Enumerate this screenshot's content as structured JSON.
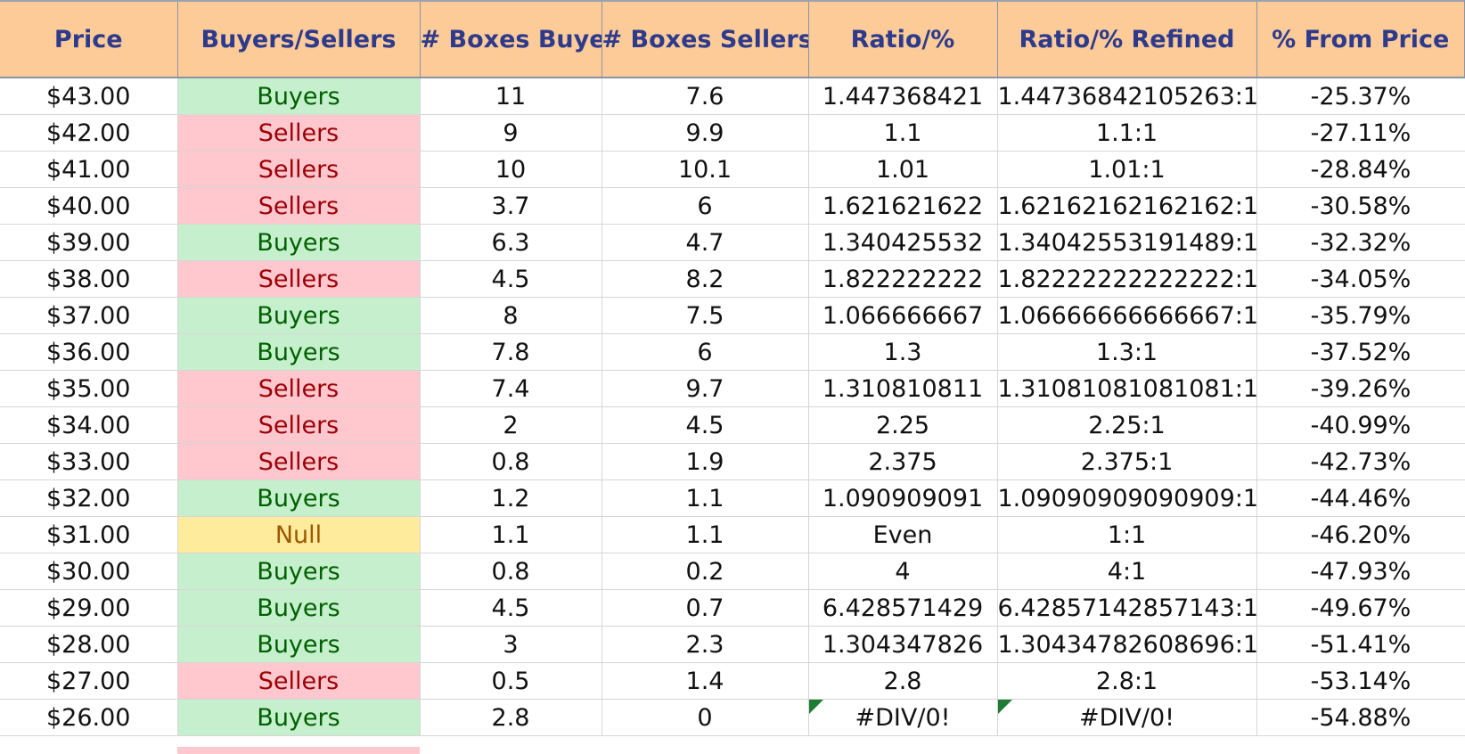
{
  "headers": [
    "Price",
    "Buyers/Sellers",
    "# Boxes Buyers",
    "# Boxes Sellers",
    "Ratio/%",
    "Ratio/% Refined",
    "% From Price"
  ],
  "rows": [
    {
      "price": "$43.00",
      "bs": "Buyers",
      "bb": "11",
      "bsell": "7.6",
      "ratio": "1.447368421",
      "refined": "1.44736842105263:1",
      "from": "-25.37%"
    },
    {
      "price": "$42.00",
      "bs": "Sellers",
      "bb": "9",
      "bsell": "9.9",
      "ratio": "1.1",
      "refined": "1.1:1",
      "from": "-27.11%"
    },
    {
      "price": "$41.00",
      "bs": "Sellers",
      "bb": "10",
      "bsell": "10.1",
      "ratio": "1.01",
      "refined": "1.01:1",
      "from": "-28.84%"
    },
    {
      "price": "$40.00",
      "bs": "Sellers",
      "bb": "3.7",
      "bsell": "6",
      "ratio": "1.621621622",
      "refined": "1.62162162162162:1",
      "from": "-30.58%"
    },
    {
      "price": "$39.00",
      "bs": "Buyers",
      "bb": "6.3",
      "bsell": "4.7",
      "ratio": "1.340425532",
      "refined": "1.34042553191489:1",
      "from": "-32.32%"
    },
    {
      "price": "$38.00",
      "bs": "Sellers",
      "bb": "4.5",
      "bsell": "8.2",
      "ratio": "1.822222222",
      "refined": "1.82222222222222:1",
      "from": "-34.05%"
    },
    {
      "price": "$37.00",
      "bs": "Buyers",
      "bb": "8",
      "bsell": "7.5",
      "ratio": "1.066666667",
      "refined": "1.06666666666667:1",
      "from": "-35.79%"
    },
    {
      "price": "$36.00",
      "bs": "Buyers",
      "bb": "7.8",
      "bsell": "6",
      "ratio": "1.3",
      "refined": "1.3:1",
      "from": "-37.52%"
    },
    {
      "price": "$35.00",
      "bs": "Sellers",
      "bb": "7.4",
      "bsell": "9.7",
      "ratio": "1.310810811",
      "refined": "1.31081081081081:1",
      "from": "-39.26%"
    },
    {
      "price": "$34.00",
      "bs": "Sellers",
      "bb": "2",
      "bsell": "4.5",
      "ratio": "2.25",
      "refined": "2.25:1",
      "from": "-40.99%"
    },
    {
      "price": "$33.00",
      "bs": "Sellers",
      "bb": "0.8",
      "bsell": "1.9",
      "ratio": "2.375",
      "refined": "2.375:1",
      "from": "-42.73%"
    },
    {
      "price": "$32.00",
      "bs": "Buyers",
      "bb": "1.2",
      "bsell": "1.1",
      "ratio": "1.090909091",
      "refined": "1.09090909090909:1",
      "from": "-44.46%"
    },
    {
      "price": "$31.00",
      "bs": "Null",
      "bb": "1.1",
      "bsell": "1.1",
      "ratio": "Even",
      "refined": "1:1",
      "from": "-46.20%"
    },
    {
      "price": "$30.00",
      "bs": "Buyers",
      "bb": "0.8",
      "bsell": "0.2",
      "ratio": "4",
      "refined": "4:1",
      "from": "-47.93%"
    },
    {
      "price": "$29.00",
      "bs": "Buyers",
      "bb": "4.5",
      "bsell": "0.7",
      "ratio": "6.428571429",
      "refined": "6.42857142857143:1",
      "from": "-49.67%"
    },
    {
      "price": "$28.00",
      "bs": "Buyers",
      "bb": "3",
      "bsell": "2.3",
      "ratio": "1.304347826",
      "refined": "1.30434782608696:1",
      "from": "-51.41%"
    },
    {
      "price": "$27.00",
      "bs": "Sellers",
      "bb": "0.5",
      "bsell": "1.4",
      "ratio": "2.8",
      "refined": "2.8:1",
      "from": "-53.14%"
    },
    {
      "price": "$26.00",
      "bs": "Buyers",
      "bb": "2.8",
      "bsell": "0",
      "ratio": "#DIV/0!",
      "refined": "#DIV/0!",
      "from": "-54.88%",
      "error_flag": true
    }
  ],
  "colors": {
    "header_bg": "#fccb98",
    "header_text": "#2e3a8c",
    "buyers_bg": "#c6efce",
    "buyers_text": "#006100",
    "sellers_bg": "#ffc7ce",
    "sellers_text": "#9c0006",
    "null_bg": "#ffeb9c",
    "null_text": "#9c5700",
    "error_flag": "#1e7b34"
  }
}
